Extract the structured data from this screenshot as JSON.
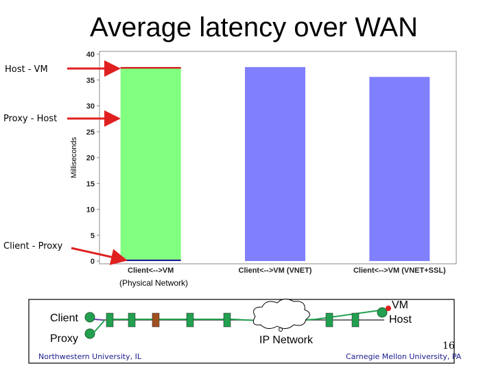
{
  "slide": {
    "title": "Average latency over WAN",
    "page_number": "16",
    "footer_left": "Northwestern University, IL",
    "footer_right": "Carnegie Mellon University, PA",
    "physical_note": "(Physical Network)"
  },
  "annotations": {
    "host_vm": "Host - VM",
    "proxy_host": "Proxy - Host",
    "client_proxy": "Client - Proxy",
    "arrow_color": "#e02020"
  },
  "chart_data": {
    "type": "bar",
    "stacked": true,
    "title": "",
    "xlabel": "",
    "ylabel": "Milliseconds",
    "ylim": [
      0,
      40
    ],
    "yticks": [
      0,
      5,
      10,
      15,
      20,
      25,
      30,
      35,
      40
    ],
    "categories": [
      "Client<-->VM",
      "Client<-->VM (VNET)",
      "Client<-->VM (VNET+SSL)"
    ],
    "series": [
      {
        "values": [
          0.3,
          0,
          0
        ],
        "color": "#1a1a8c"
      },
      {
        "values": [
          36.9,
          0,
          0
        ],
        "color": "#80ff80"
      },
      {
        "values": [
          0.3,
          0,
          0
        ],
        "color": "#d01010"
      },
      {
        "values": [
          0,
          37.5,
          35.6
        ],
        "color": "#8080ff"
      }
    ],
    "grid": false,
    "legend": "none"
  },
  "network": {
    "client_label": "Client",
    "proxy_label": "Proxy",
    "ip_label": "IP Network",
    "vm_label": "VM",
    "host_label": "Host",
    "node_color": "#22a050",
    "router_color": "#a05020"
  }
}
